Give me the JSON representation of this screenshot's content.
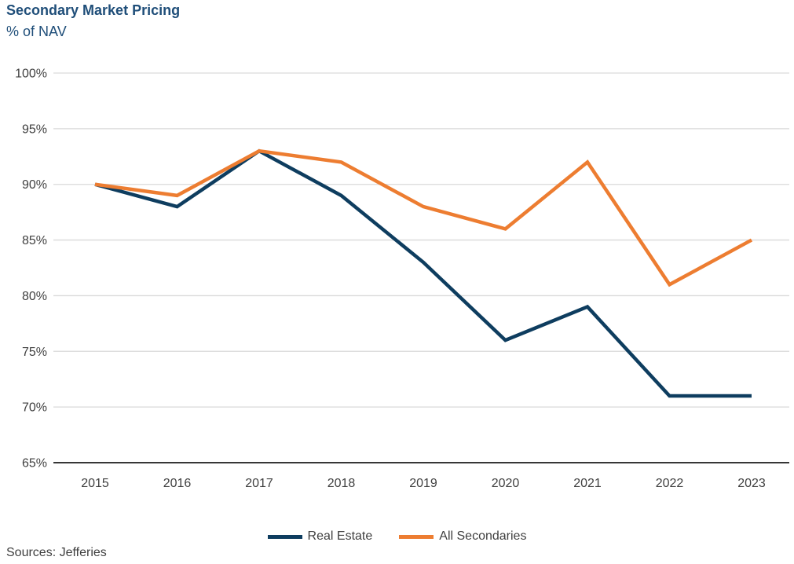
{
  "chart_data": {
    "type": "line",
    "title": "Secondary Market Pricing",
    "subtitle": "% of NAV",
    "x": [
      "2015",
      "2016",
      "2017",
      "2018",
      "2019",
      "2020",
      "2021",
      "2022",
      "2023"
    ],
    "series": [
      {
        "name": "Real Estate",
        "color": "#0E3D5F",
        "values": [
          90,
          88,
          93,
          89,
          83,
          76,
          79,
          71,
          71
        ]
      },
      {
        "name": "All Secondaries",
        "color": "#ED7D31",
        "values": [
          90,
          89,
          93,
          92,
          88,
          86,
          92,
          81,
          85
        ]
      }
    ],
    "ylim": [
      65,
      100
    ],
    "ytick_step": 5,
    "ytick_suffix": "%",
    "grid": true,
    "legend_position": "bottom-center",
    "xlabel": "",
    "ylabel": "% of NAV"
  },
  "footer": {
    "sources": "Sources: Jefferies"
  },
  "colors": {
    "title": "#1F4E79",
    "gridline": "#D9D9D9",
    "axis": "#1A1A1A",
    "tick_label": "#3F3F3F",
    "legend_label": "#3F3F3F",
    "source_text": "#3F3F3F"
  }
}
